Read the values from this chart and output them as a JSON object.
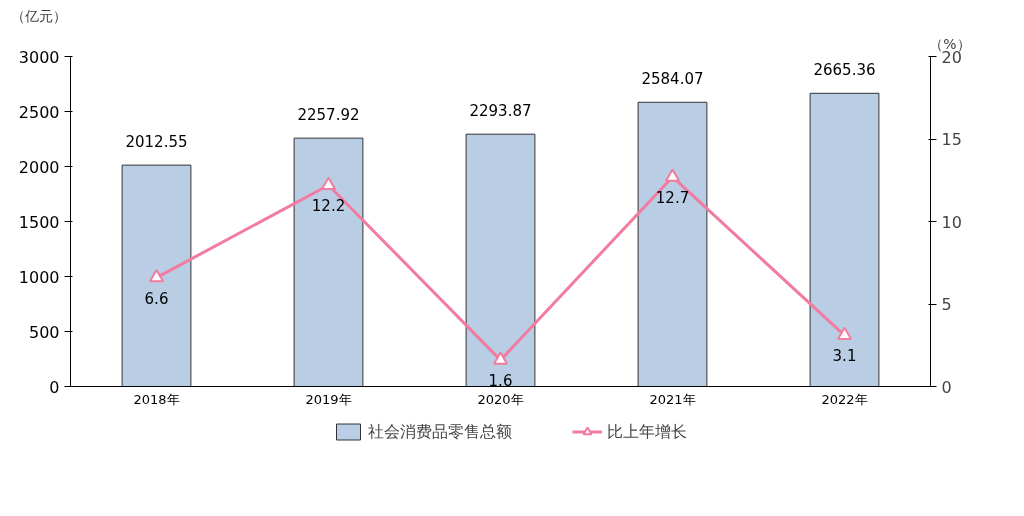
{
  "chart_data": {
    "type": "bar",
    "ylabel": "（亿元）",
    "y2label": "（%）",
    "categories": [
      "2018年",
      "2019年",
      "2020年",
      "2021年",
      "2022年"
    ],
    "series": [
      {
        "name": "社会消费品零售总额",
        "color": "#b9cde5",
        "values": [
          2012.55,
          2257.92,
          2293.87,
          2584.07,
          2665.36
        ]
      },
      {
        "name": "比上年增长",
        "type": "line",
        "axis": "y2",
        "color": "#f27ba0",
        "marker": "triangle",
        "values": [
          6.6,
          12.2,
          1.6,
          12.7,
          3.1
        ]
      }
    ],
    "ylim": [
      0,
      3000
    ],
    "yticks": [
      0,
      500,
      1000,
      1500,
      2000,
      2500,
      3000
    ],
    "y2lim": [
      0,
      20
    ],
    "y2ticks": [
      0,
      5,
      10,
      15,
      20
    ],
    "data_labels": true,
    "grid": false,
    "legend": "bottom"
  }
}
